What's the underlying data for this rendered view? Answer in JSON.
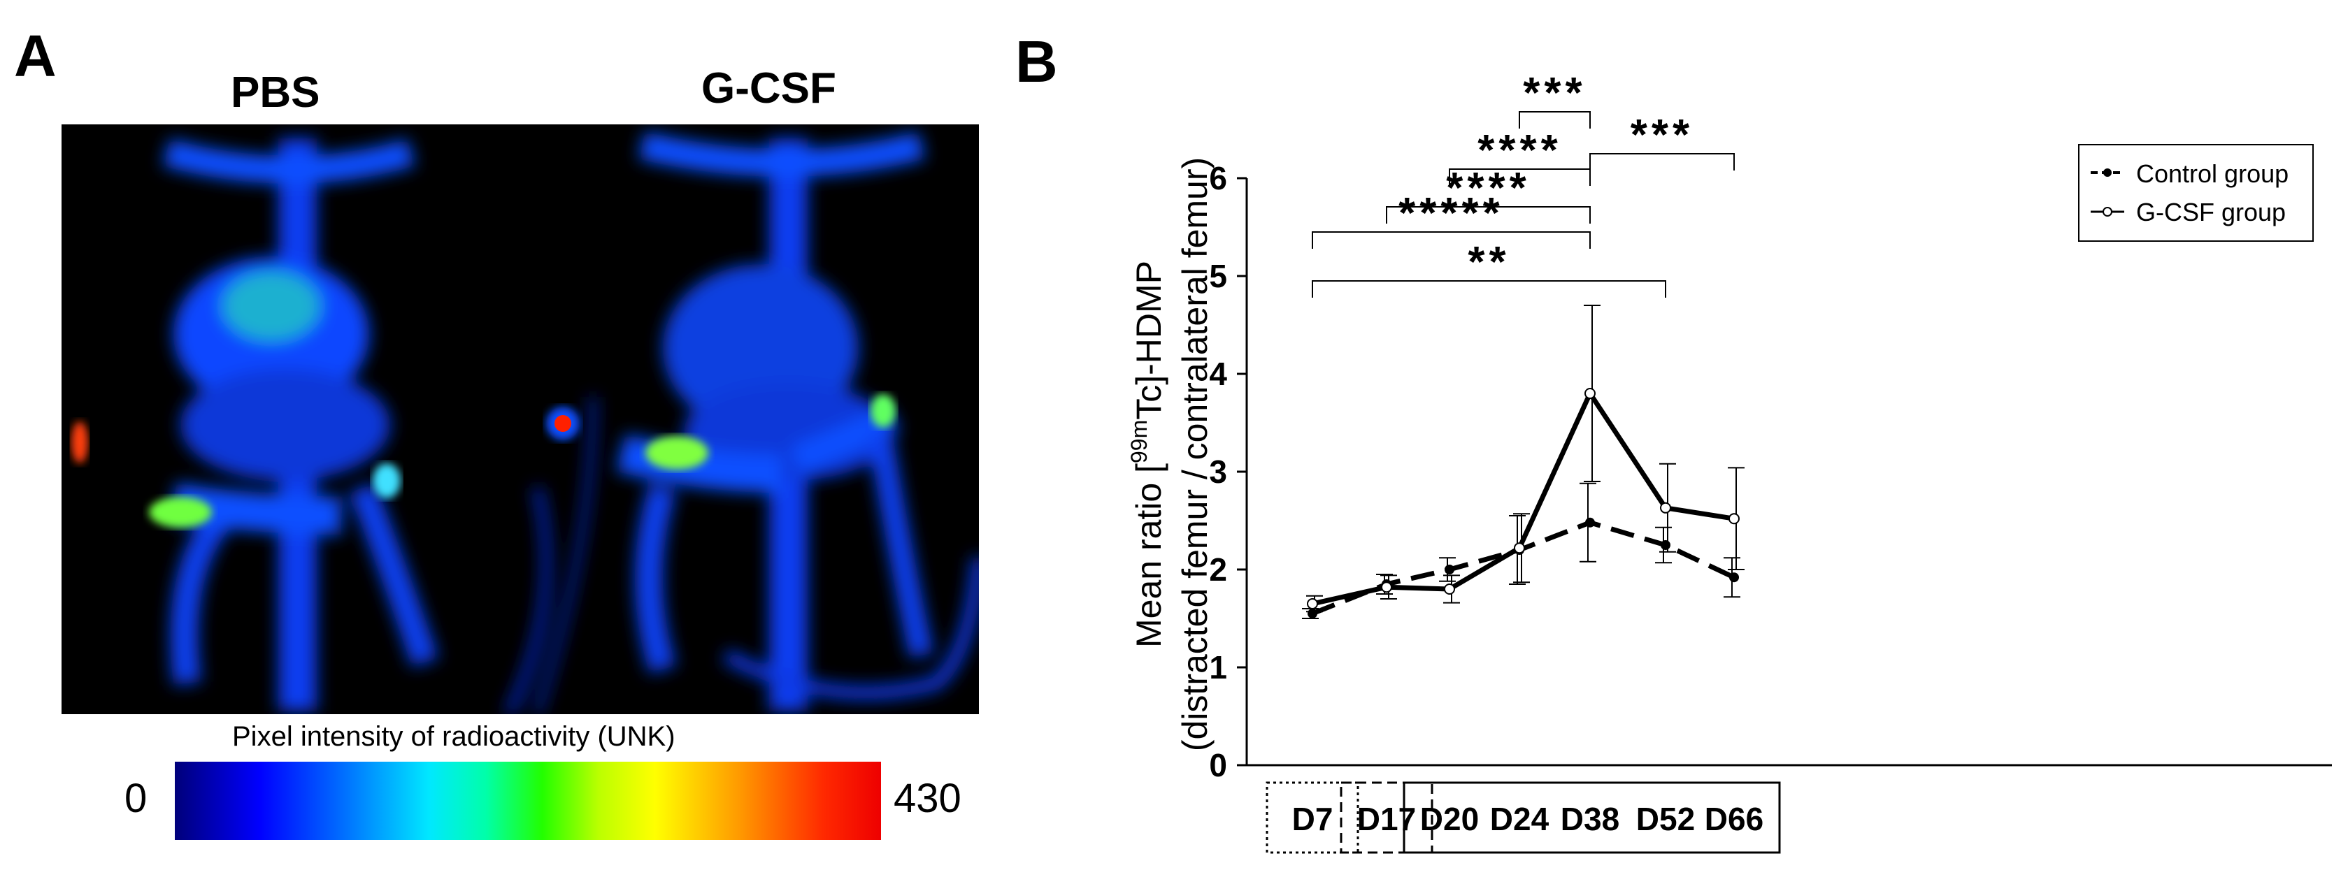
{
  "panel_a": {
    "letter": "A",
    "label_left": "PBS",
    "label_right": "G-CSF",
    "colorbar_title": "Pixel intensity of radioactivity (UNK)",
    "colorbar_min": "0",
    "colorbar_max": "430",
    "colors": {
      "background": "#000000",
      "low": "#0000ff",
      "high": "#ff0000"
    }
  },
  "panel_b": {
    "letter": "B"
  },
  "chart_data": {
    "type": "line",
    "title": "",
    "ylabel_main": "Mean ratio [",
    "ylabel_sup": "99m",
    "ylabel_tc": "Tc]-HDMP",
    "ylabel_line2": "(distracted femur / contralateral femur)",
    "xlabel": "",
    "ylim": [
      0,
      6
    ],
    "yticks": [
      "0",
      "1",
      "2",
      "3",
      "4",
      "5",
      "6"
    ],
    "categories": [
      "D7",
      "D17",
      "D20",
      "D24",
      "D38",
      "D52",
      "D66"
    ],
    "grid": false,
    "legend_position": "top-right",
    "series": [
      {
        "name": "Control group",
        "style": "dashed",
        "marker": "filled",
        "values": [
          1.55,
          1.85,
          2.0,
          2.2,
          2.48,
          2.25,
          1.92
        ],
        "errors": [
          0.05,
          0.1,
          0.12,
          0.35,
          0.4,
          0.18,
          0.2
        ]
      },
      {
        "name": "G-CSF group",
        "style": "solid",
        "marker": "open",
        "values": [
          1.65,
          1.82,
          1.8,
          2.22,
          3.8,
          2.63,
          2.52
        ],
        "errors": [
          0.08,
          0.12,
          0.14,
          0.35,
          0.9,
          0.45,
          0.52
        ]
      }
    ],
    "significance": [
      {
        "label": "***",
        "from": 3,
        "to": 4
      },
      {
        "label": "***",
        "from": 4,
        "to": 6
      },
      {
        "label": "****",
        "from": 2,
        "to": 4
      },
      {
        "label": "****",
        "from": 1,
        "to": 4
      },
      {
        "label": "*****",
        "from": 0,
        "to": 4
      },
      {
        "label": "**",
        "from": 0,
        "to": 5
      }
    ],
    "category_boxes": [
      {
        "from": 0,
        "to": 0,
        "style": "dotted"
      },
      {
        "from": 1,
        "to": 1,
        "style": "dashed"
      },
      {
        "from": 2,
        "to": 6,
        "style": "solid"
      }
    ]
  }
}
